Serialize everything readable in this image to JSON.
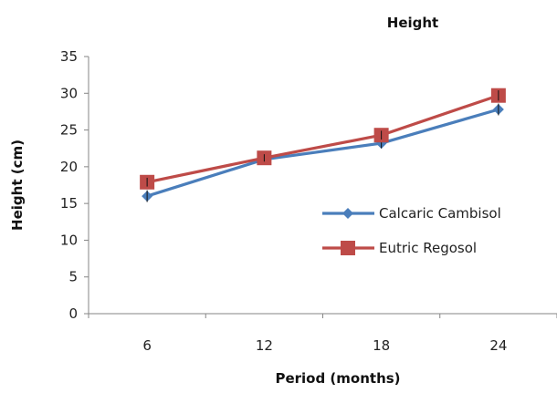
{
  "chart_data": {
    "type": "line",
    "title": "Height",
    "xlabel": "Period (months)",
    "ylabel": "Height (cm)",
    "categories": [
      "6",
      "12",
      "18",
      "24"
    ],
    "ylim": [
      0,
      35
    ],
    "yticks": [
      0,
      5,
      10,
      15,
      20,
      25,
      30,
      35
    ],
    "grid": false,
    "legend_position": "right",
    "series": [
      {
        "name": "Calcaric Cambisol",
        "values": [
          16.0,
          21.0,
          23.2,
          27.8
        ],
        "errors": [
          0.8,
          0.5,
          0.7,
          0.8
        ],
        "color": "#4a7ebb",
        "marker": "diamond"
      },
      {
        "name": "Eutric Regosol",
        "values": [
          17.9,
          21.2,
          24.3,
          29.7
        ],
        "errors": [
          0.6,
          0.5,
          0.6,
          0.7
        ],
        "color": "#be4b48",
        "marker": "square"
      }
    ]
  }
}
